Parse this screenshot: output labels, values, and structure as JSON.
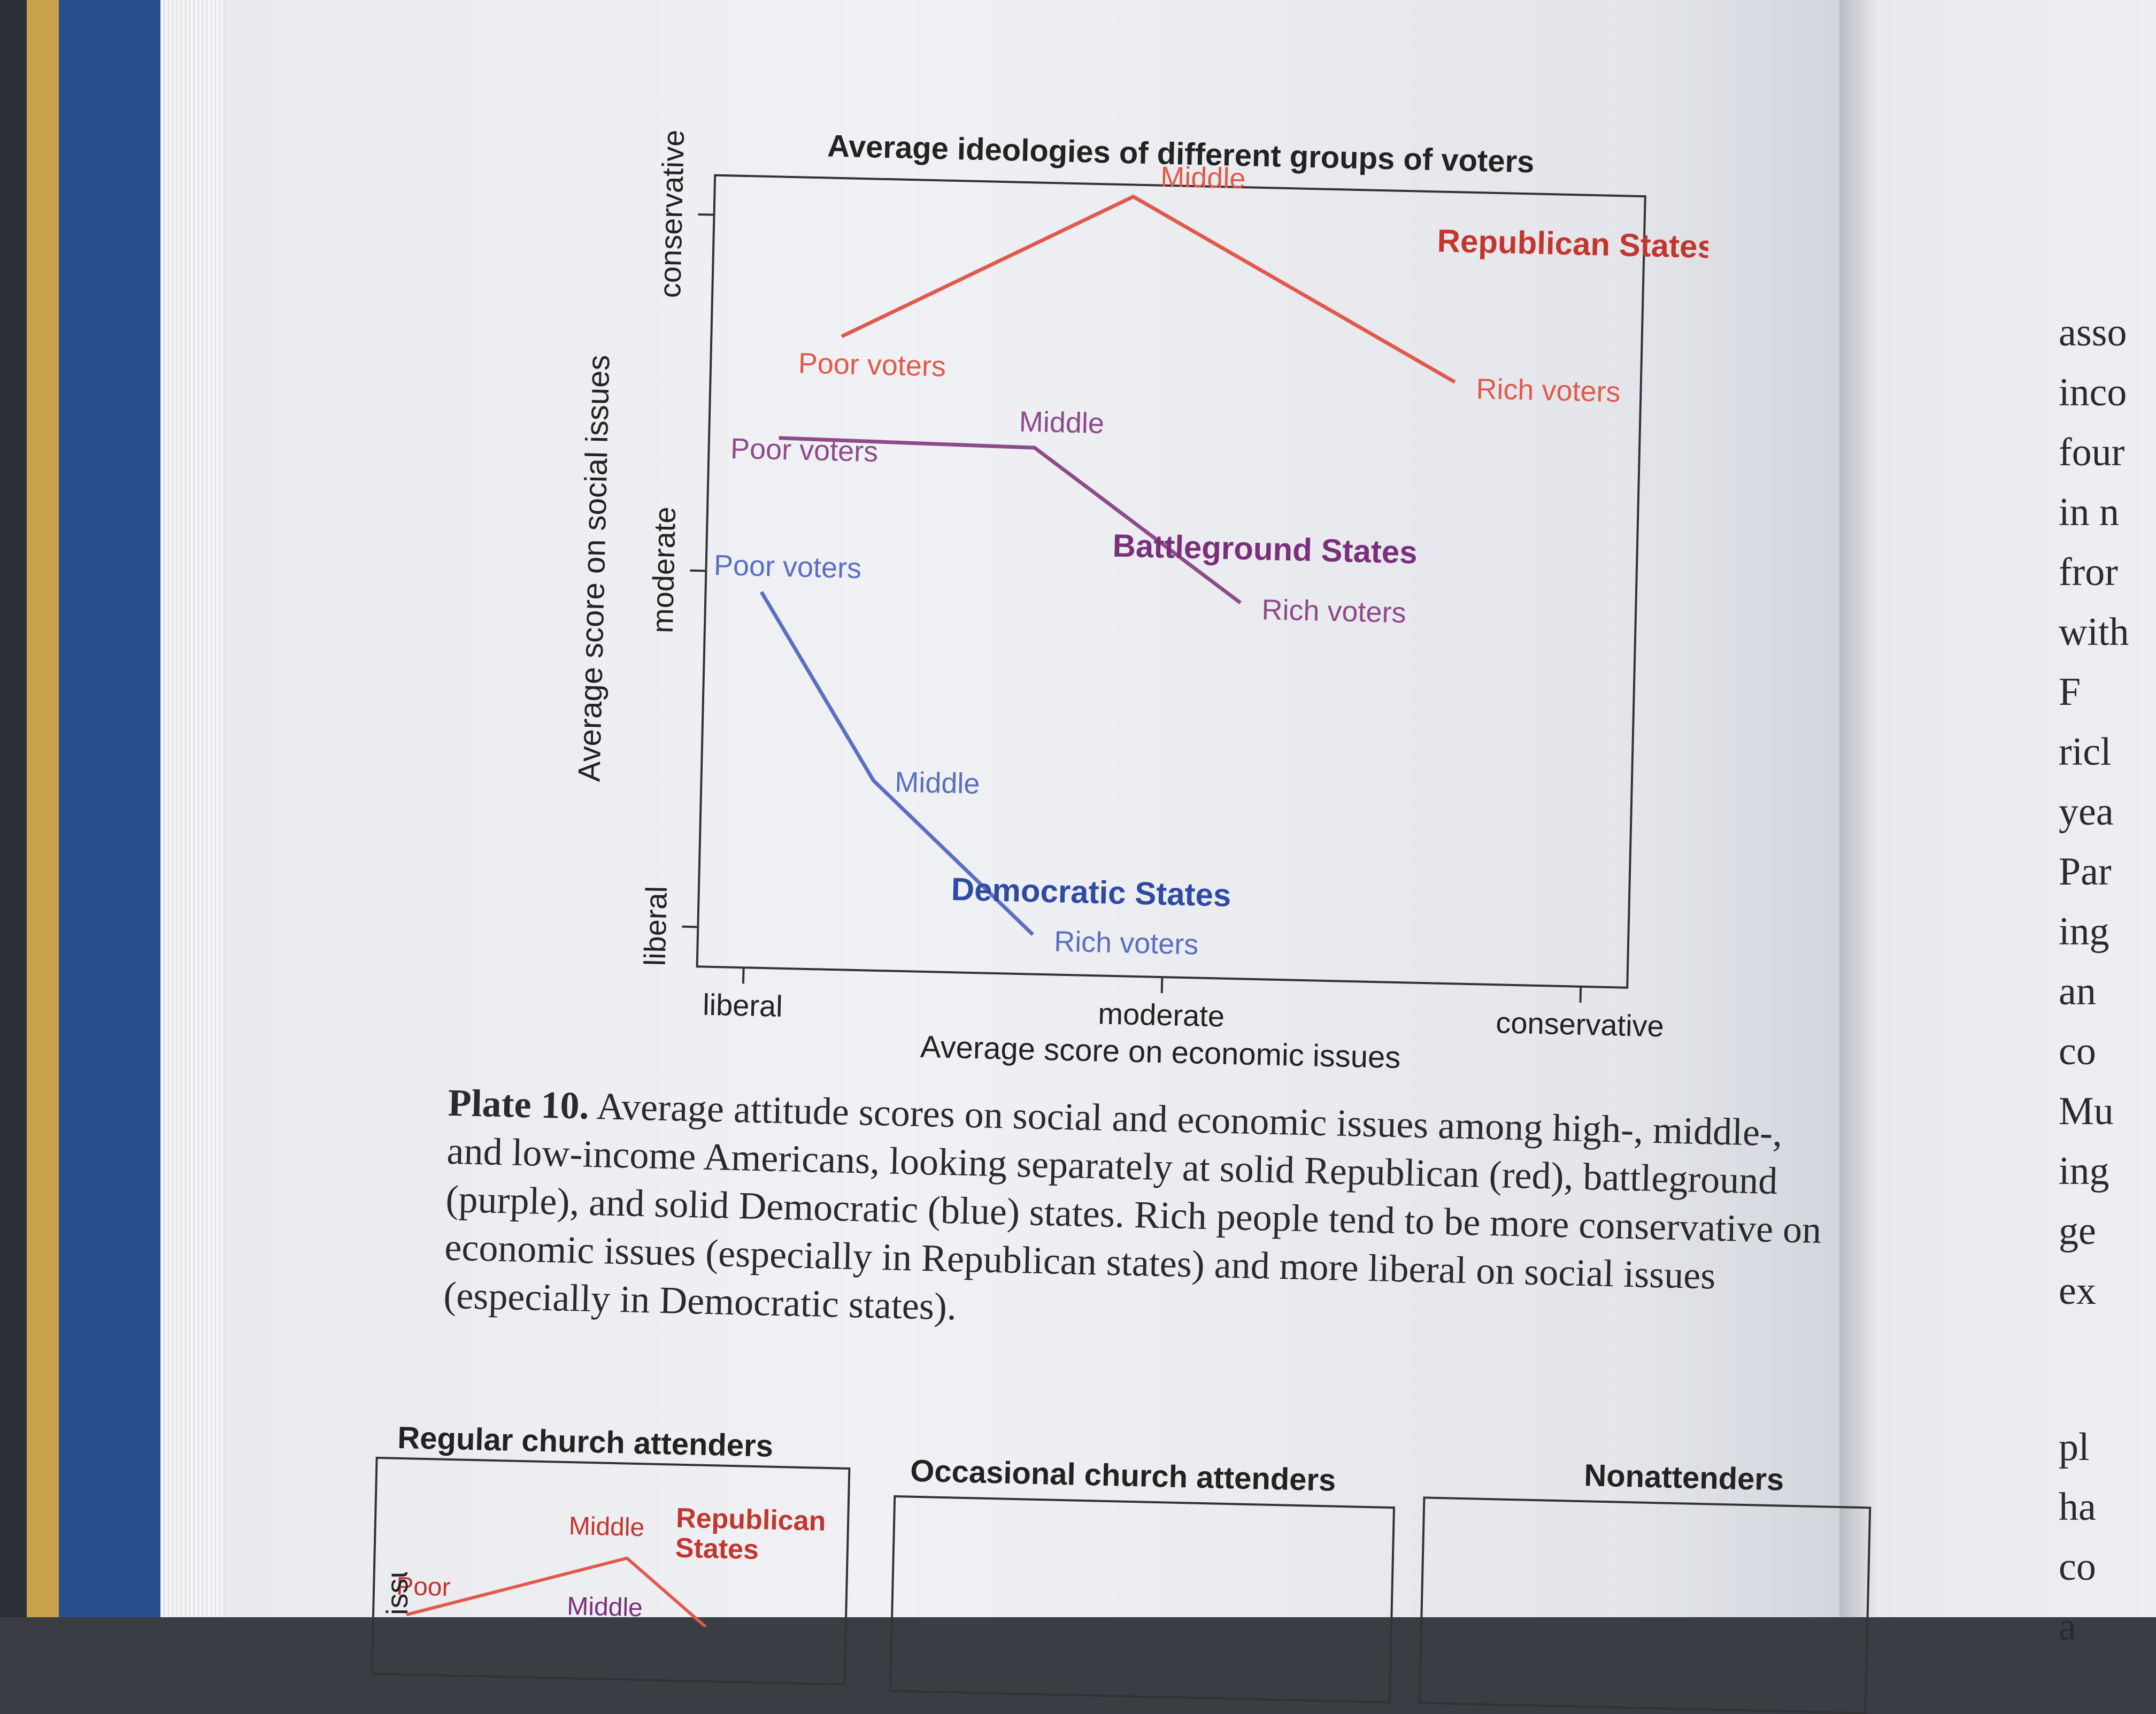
{
  "chart_data": {
    "type": "line",
    "title": "Average ideologies of different groups of voters",
    "xlabel": "Average score on economic issues",
    "ylabel": "Average score on social issues",
    "x_ticks": [
      "liberal",
      "moderate",
      "conservative"
    ],
    "y_ticks": [
      "liberal",
      "moderate",
      "conservative"
    ],
    "xlim": [
      -1,
      1
    ],
    "ylim": [
      -1,
      1
    ],
    "grid": false,
    "series": [
      {
        "name": "Republican States",
        "color": "#e05a4c",
        "label_color": "#c2362e",
        "points": [
          {
            "label": "Poor voters",
            "x": -0.72,
            "y": 0.6
          },
          {
            "label": "Middle",
            "x": -0.1,
            "y": 0.97
          },
          {
            "label": "Rich voters",
            "x": 0.6,
            "y": 0.52
          }
        ]
      },
      {
        "name": "Battleground States",
        "color": "#8e4a8a",
        "label_color": "#7a2f7a",
        "points": [
          {
            "label": "Poor voters",
            "x": -0.85,
            "y": 0.34
          },
          {
            "label": "Middle",
            "x": -0.3,
            "y": 0.33
          },
          {
            "label": "Rich voters",
            "x": 0.15,
            "y": -0.05
          }
        ]
      },
      {
        "name": "Democratic States",
        "color": "#5a6fc0",
        "label_color": "#2f4aa2",
        "points": [
          {
            "label": "Poor voters",
            "x": -0.88,
            "y": -0.05
          },
          {
            "label": "Middle",
            "x": -0.63,
            "y": -0.52
          },
          {
            "label": "Rich voters",
            "x": -0.28,
            "y": -0.9
          }
        ]
      }
    ]
  },
  "caption": {
    "plate": "Plate 10.",
    "text": "Average attitude scores on social and economic issues among high-, middle-, and low-income Americans, looking separately at solid Republican (red), battleground (purple), and solid Democratic (blue) states. Rich people tend to be more conservative on economic issues (especially in Republican states) and more liberal on social issues (especially in Democratic states)."
  },
  "next_figure": {
    "panels": [
      "Regular church attenders",
      "Occasional church attenders",
      "Nonattenders"
    ],
    "partial_labels": [
      "Middle",
      "Republican States",
      "Poor",
      "Middle"
    ],
    "partial_axis": "issues"
  },
  "facing_page_fragments": [
    "asso",
    "inco",
    "four",
    "in n",
    "fror",
    "with",
    "F",
    "ricl",
    "yea",
    "Par",
    "ing",
    "an",
    "co",
    "Mu",
    "ing",
    "ge",
    "ex",
    "pl",
    "ha",
    "co",
    "a"
  ]
}
